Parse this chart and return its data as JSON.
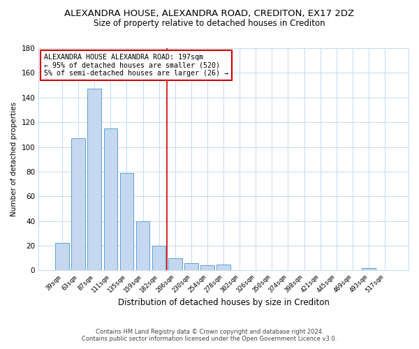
{
  "title": "ALEXANDRA HOUSE, ALEXANDRA ROAD, CREDITON, EX17 2DZ",
  "subtitle": "Size of property relative to detached houses in Crediton",
  "xlabel": "Distribution of detached houses by size in Crediton",
  "ylabel": "Number of detached properties",
  "bar_labels": [
    "39sqm",
    "63sqm",
    "87sqm",
    "111sqm",
    "135sqm",
    "159sqm",
    "182sqm",
    "206sqm",
    "230sqm",
    "254sqm",
    "278sqm",
    "302sqm",
    "326sqm",
    "350sqm",
    "374sqm",
    "398sqm",
    "421sqm",
    "445sqm",
    "469sqm",
    "493sqm",
    "517sqm"
  ],
  "bar_values": [
    22,
    107,
    147,
    115,
    79,
    40,
    20,
    10,
    6,
    4,
    5,
    0,
    0,
    0,
    0,
    0,
    0,
    0,
    0,
    2,
    0
  ],
  "bar_color": "#c5d8f0",
  "bar_edge_color": "#5a9fd4",
  "vline_x": 6.5,
  "vline_color": "#cc0000",
  "ylim": [
    0,
    180
  ],
  "yticks": [
    0,
    20,
    40,
    60,
    80,
    100,
    120,
    140,
    160,
    180
  ],
  "annotation_title": "ALEXANDRA HOUSE ALEXANDRA ROAD: 197sqm",
  "annotation_line1": "← 95% of detached houses are smaller (520)",
  "annotation_line2": "5% of semi-detached houses are larger (26) →",
  "footer_line1": "Contains HM Land Registry data © Crown copyright and database right 2024.",
  "footer_line2": "Contains public sector information licensed under the Open Government Licence v3.0.",
  "title_fontsize": 9.5,
  "subtitle_fontsize": 8.5,
  "background_color": "#ffffff",
  "grid_color": "#c8d8ec"
}
